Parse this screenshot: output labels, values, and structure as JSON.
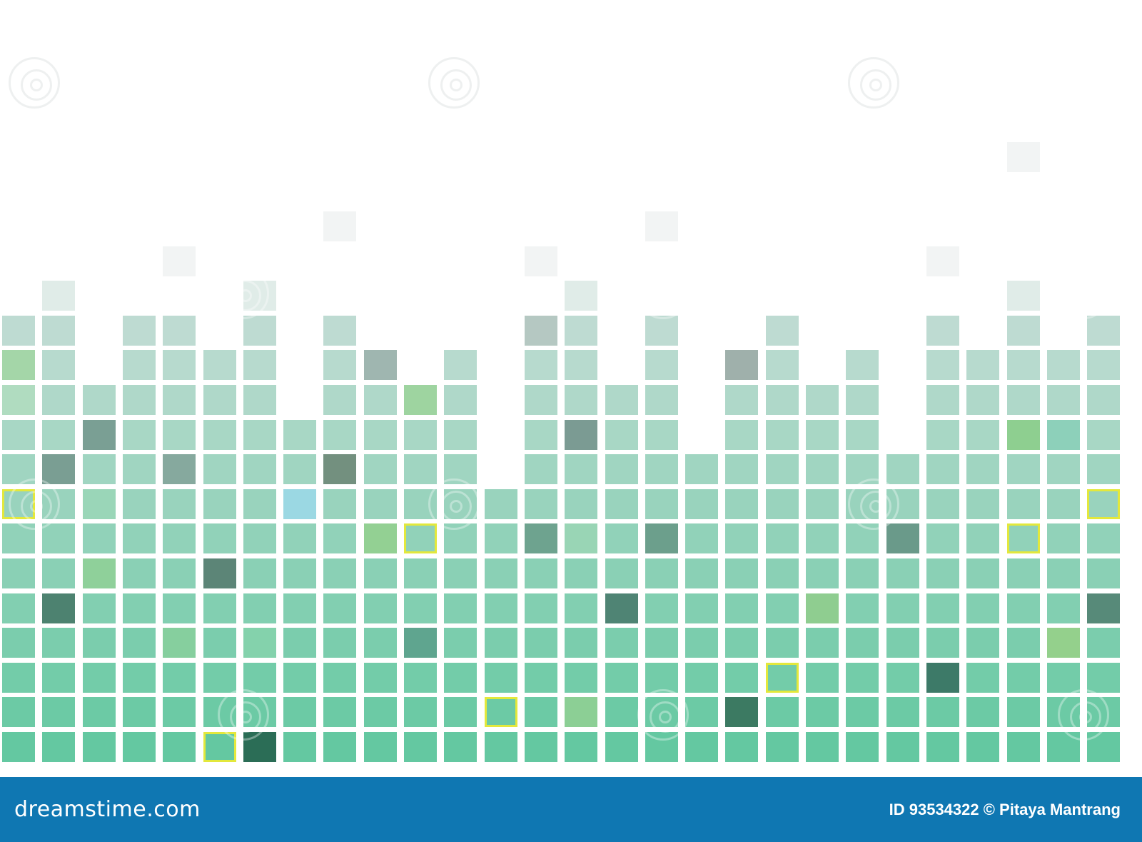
{
  "mosaic": {
    "columns": 28,
    "rows": 13,
    "column_heights": [
      13,
      14,
      11,
      13,
      13,
      12,
      14,
      10,
      13,
      12,
      11,
      12,
      8,
      13,
      14,
      11,
      13,
      9,
      12,
      13,
      11,
      12,
      9,
      13,
      12,
      14,
      12,
      13
    ],
    "ghost_caps": [
      {
        "col": 4,
        "row": -2
      },
      {
        "col": 8,
        "row": -3
      },
      {
        "col": 13,
        "row": -2
      },
      {
        "col": 16,
        "row": -3
      },
      {
        "col": 23,
        "row": -2
      },
      {
        "col": 25,
        "row": -4
      }
    ],
    "accents": [
      {
        "col": 0,
        "row": 0,
        "color": "#a4d6a8"
      },
      {
        "col": 0,
        "row": 1,
        "color": "#b0dcc0"
      },
      {
        "col": 2,
        "row": 2,
        "color": "#7a9f94"
      },
      {
        "col": 1,
        "row": 3,
        "color": "#7a9e93"
      },
      {
        "col": 4,
        "row": 3,
        "color": "#86a99e"
      },
      {
        "col": 8,
        "row": 3,
        "color": "#73907f"
      },
      {
        "col": 10,
        "row": 1,
        "color": "#9ed4a0"
      },
      {
        "col": 9,
        "row": 0,
        "color": "#9fb6b0"
      },
      {
        "col": 13,
        "row": -1,
        "color": "#b5c8c2"
      },
      {
        "col": 14,
        "row": 2,
        "color": "#7b9b93"
      },
      {
        "col": 18,
        "row": 0,
        "color": "#9fb0ab"
      },
      {
        "col": 25,
        "row": 2,
        "color": "#8ecf90"
      },
      {
        "col": 26,
        "row": 2,
        "color": "#8dd0ba"
      },
      {
        "col": 2,
        "row": 4,
        "color": "#9ad6b8"
      },
      {
        "col": 7,
        "row": 4,
        "color": "#9bd8e3"
      },
      {
        "col": 9,
        "row": 5,
        "color": "#93d093"
      },
      {
        "col": 13,
        "row": 5,
        "color": "#6ea38f"
      },
      {
        "col": 14,
        "row": 5,
        "color": "#99d5b5"
      },
      {
        "col": 16,
        "row": 5,
        "color": "#6c9f8c"
      },
      {
        "col": 22,
        "row": 5,
        "color": "#6a9a8a"
      },
      {
        "col": 2,
        "row": 6,
        "color": "#8fd09a"
      },
      {
        "col": 5,
        "row": 6,
        "color": "#5c8577"
      },
      {
        "col": 1,
        "row": 7,
        "color": "#4d8270"
      },
      {
        "col": 15,
        "row": 7,
        "color": "#4f8474"
      },
      {
        "col": 20,
        "row": 7,
        "color": "#8fcd90"
      },
      {
        "col": 27,
        "row": 7,
        "color": "#578a79"
      },
      {
        "col": 4,
        "row": 8,
        "color": "#86cf9e"
      },
      {
        "col": 6,
        "row": 8,
        "color": "#84d2ac"
      },
      {
        "col": 10,
        "row": 8,
        "color": "#5fa58f"
      },
      {
        "col": 26,
        "row": 8,
        "color": "#94d08c"
      },
      {
        "col": 23,
        "row": 9,
        "color": "#3d7a68"
      },
      {
        "col": 14,
        "row": 10,
        "color": "#8ccf95"
      },
      {
        "col": 18,
        "row": 10,
        "color": "#3c7a62"
      },
      {
        "col": 6,
        "row": 11,
        "color": "#2b6d56"
      }
    ],
    "outlined_tiles": [
      {
        "col": 0,
        "row": 4
      },
      {
        "col": 10,
        "row": 5
      },
      {
        "col": 25,
        "row": 5
      },
      {
        "col": 27,
        "row": 4
      },
      {
        "col": 19,
        "row": 9
      },
      {
        "col": 12,
        "row": 10
      },
      {
        "col": 5,
        "row": 11
      }
    ],
    "colors": {
      "faint": "#f2f4f4",
      "top": "#c6ddd6",
      "bottom": "#5ec79d",
      "outline": "#e3e83c"
    }
  },
  "footer": {
    "logo_text": "dreamstime.com",
    "credit_text": "ID 93534322 © Pitaya Mantrang",
    "background": "#0f77b2"
  }
}
